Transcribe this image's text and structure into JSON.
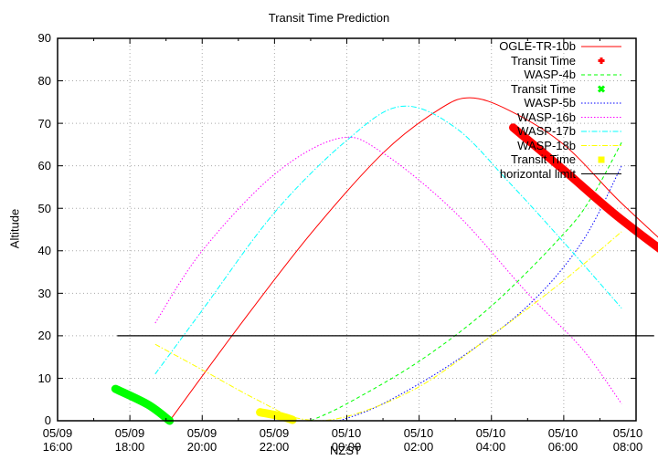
{
  "chart_data": {
    "type": "line",
    "title": "Transit Time Prediction",
    "xlabel": "NZST",
    "ylabel": "Altitude",
    "ylim": [
      0,
      90
    ],
    "yticks": [
      "0",
      "10",
      "20",
      "30",
      "40",
      "50",
      "60",
      "70",
      "80",
      "90"
    ],
    "xticks": [
      {
        "date": "05/09",
        "time": "16:00"
      },
      {
        "date": "05/09",
        "time": "18:00"
      },
      {
        "date": "05/09",
        "time": "20:00"
      },
      {
        "date": "05/09",
        "time": "22:00"
      },
      {
        "date": "05/10",
        "time": "00:00"
      },
      {
        "date": "05/10",
        "time": "02:00"
      },
      {
        "date": "05/10",
        "time": "04:00"
      },
      {
        "date": "05/10",
        "time": "06:00"
      },
      {
        "date": "05/10",
        "time": "08:00"
      }
    ],
    "grid": true,
    "legend_position": "top-right",
    "x_units": "hours since 05/09 16:00",
    "series": [
      {
        "name": "OGLE-TR-10b",
        "style": "line",
        "color": "#ff0000",
        "points": [
          [
            3.1,
            0
          ],
          [
            5,
            22
          ],
          [
            7,
            44
          ],
          [
            9,
            63
          ],
          [
            10.5,
            73
          ],
          [
            11.4,
            76
          ],
          [
            12.5,
            73
          ],
          [
            14,
            65
          ],
          [
            15.5,
            52
          ],
          [
            17,
            40
          ],
          [
            17.2,
            37
          ]
        ]
      },
      {
        "name": "Transit Time",
        "style": "points",
        "marker": "plus",
        "color": "#ff0000",
        "points": [
          [
            12.6,
            69
          ],
          [
            14,
            59
          ],
          [
            15.5,
            48
          ],
          [
            17.2,
            37
          ]
        ]
      },
      {
        "name": "WASP-4b",
        "style": "dashed",
        "color": "#00ff00",
        "points": [
          [
            7,
            0
          ],
          [
            8,
            4
          ],
          [
            10,
            14
          ],
          [
            12,
            27
          ],
          [
            14,
            44
          ],
          [
            14.8,
            53
          ],
          [
            15.6,
            65.5
          ]
        ]
      },
      {
        "name": "Transit Time",
        "style": "points",
        "marker": "cross",
        "color": "#00ff00",
        "points": [
          [
            1.6,
            7.5
          ],
          [
            2.5,
            3.8
          ],
          [
            3.1,
            0
          ]
        ]
      },
      {
        "name": "WASP-5b",
        "style": "dotted",
        "color": "#0000ff",
        "points": [
          [
            7.8,
            0
          ],
          [
            9,
            4
          ],
          [
            11,
            14
          ],
          [
            13,
            27
          ],
          [
            14.5,
            42
          ],
          [
            15.6,
            60
          ]
        ]
      },
      {
        "name": "WASP-16b",
        "style": "dotted",
        "color": "#ff00ff",
        "points": [
          [
            2.7,
            23
          ],
          [
            4,
            40
          ],
          [
            6,
            58
          ],
          [
            7.8,
            66.5
          ],
          [
            9,
            63
          ],
          [
            11,
            49
          ],
          [
            13,
            30
          ],
          [
            14.5,
            17
          ],
          [
            15.6,
            4
          ]
        ]
      },
      {
        "name": "WASP-17b",
        "style": "dashdot",
        "color": "#00ffff",
        "points": [
          [
            2.7,
            11
          ],
          [
            4,
            26
          ],
          [
            6,
            49
          ],
          [
            8,
            66
          ],
          [
            9.5,
            74
          ],
          [
            11,
            69
          ],
          [
            12.5,
            56
          ],
          [
            14,
            42
          ],
          [
            15.6,
            26.5
          ]
        ]
      },
      {
        "name": "WASP-18b",
        "style": "dashdot",
        "color": "#ffff00",
        "points": [
          [
            2.7,
            18
          ],
          [
            4,
            12
          ],
          [
            5.5,
            5
          ],
          [
            6.7,
            0.5
          ],
          [
            8,
            1
          ],
          [
            10,
            8
          ],
          [
            12,
            20
          ],
          [
            14,
            33
          ],
          [
            15.6,
            44.5
          ]
        ]
      },
      {
        "name": "Transit Time",
        "style": "points",
        "marker": "square",
        "color": "#ffff00",
        "points": [
          [
            5.6,
            2
          ],
          [
            6.2,
            1
          ],
          [
            6.5,
            0.2
          ]
        ]
      },
      {
        "name": "horizontal limit",
        "style": "line",
        "color": "#000000",
        "points": [
          [
            1.65,
            20
          ],
          [
            16.5,
            20
          ]
        ]
      }
    ]
  },
  "legend": [
    {
      "label": "OGLE-TR-10b"
    },
    {
      "label": "Transit Time"
    },
    {
      "label": "WASP-4b"
    },
    {
      "label": "Transit Time"
    },
    {
      "label": "WASP-5b"
    },
    {
      "label": "WASP-16b"
    },
    {
      "label": "WASP-17b"
    },
    {
      "label": "WASP-18b"
    },
    {
      "label": "Transit Time"
    },
    {
      "label": "horizontal limit"
    }
  ]
}
